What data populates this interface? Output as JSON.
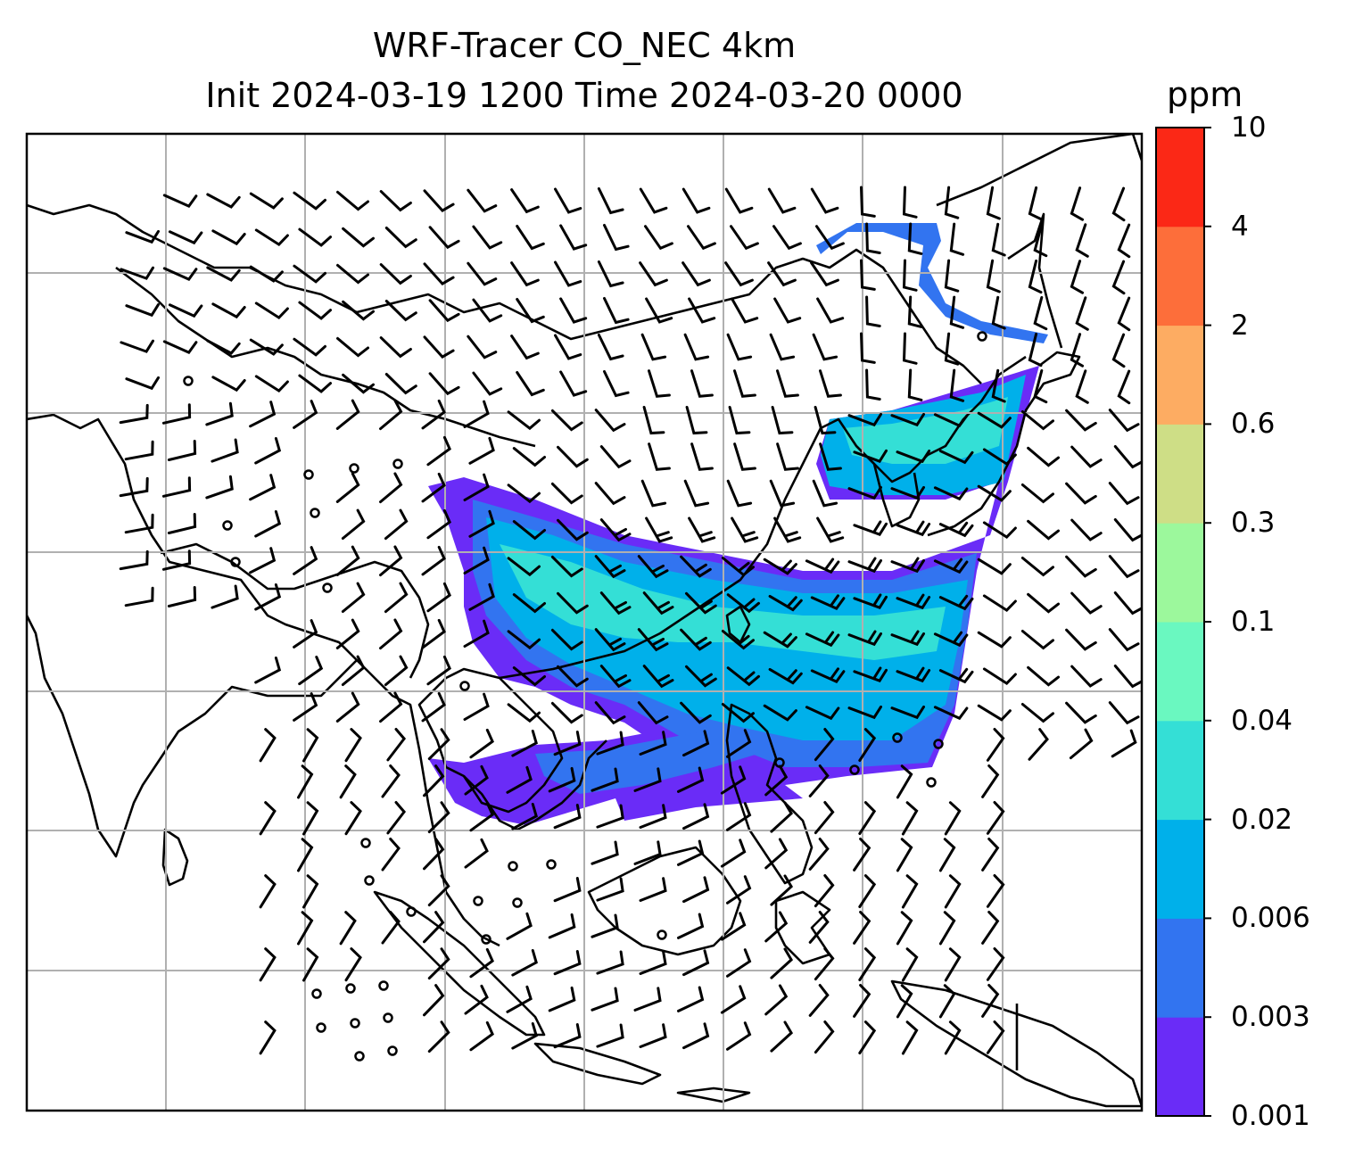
{
  "title": {
    "line1": "WRF-Tracer CO_NEC 4km",
    "line2": "Init 2024-03-19 1200 Time 2024-03-20 0000"
  },
  "colorbar": {
    "unit": "ppm",
    "levels": [
      "0.001",
      "0.003",
      "0.006",
      "0.02",
      "0.04",
      "0.1",
      "0.3",
      "0.6",
      "2",
      "4",
      "10"
    ],
    "colors": [
      "#6a2cf7",
      "#3274f0",
      "#00b0ea",
      "#34dfd6",
      "#6af8c0",
      "#9cf89c",
      "#cede86",
      "#fdac62",
      "#fd6e3a",
      "#fb2816"
    ]
  },
  "map": {
    "region": "East & Southeast Asia",
    "wind_symbol": "wind-barb",
    "calm_symbol": "calm-circle"
  }
}
